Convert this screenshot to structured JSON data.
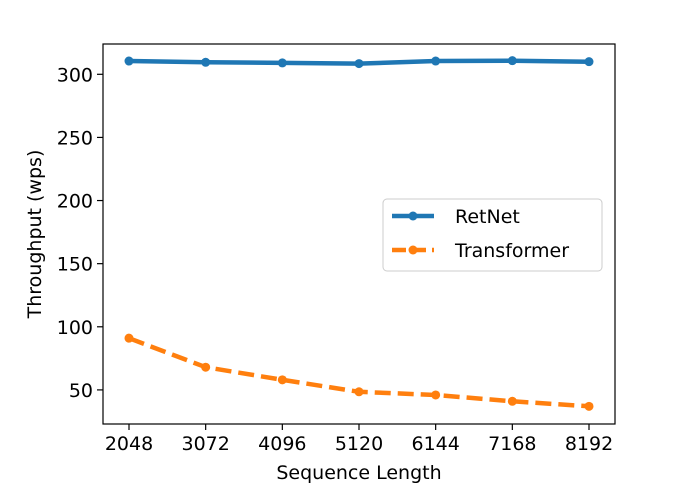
{
  "chart_data": {
    "type": "line",
    "title": "",
    "xlabel": "Sequence Length",
    "ylabel": "Throughput (wps)",
    "x": [
      2048,
      3072,
      4096,
      5120,
      6144,
      7168,
      8192
    ],
    "xticks": [
      "2048",
      "3072",
      "4096",
      "5120",
      "6144",
      "7168",
      "8192"
    ],
    "yticks": [
      50,
      100,
      150,
      200,
      250,
      300
    ],
    "ylim": [
      23,
      324
    ],
    "grid": false,
    "legend_position": "center-right",
    "series": [
      {
        "name": "RetNet",
        "color": "#1f77b4",
        "line_style": "solid",
        "marker": "circle",
        "values": [
          310.5,
          309.5,
          309,
          308.5,
          310.5,
          310.8,
          310
        ]
      },
      {
        "name": "Transformer",
        "color": "#ff7f0e",
        "line_style": "dashed",
        "marker": "circle",
        "values": [
          91,
          68,
          58,
          48.5,
          46,
          41,
          37
        ]
      }
    ]
  }
}
